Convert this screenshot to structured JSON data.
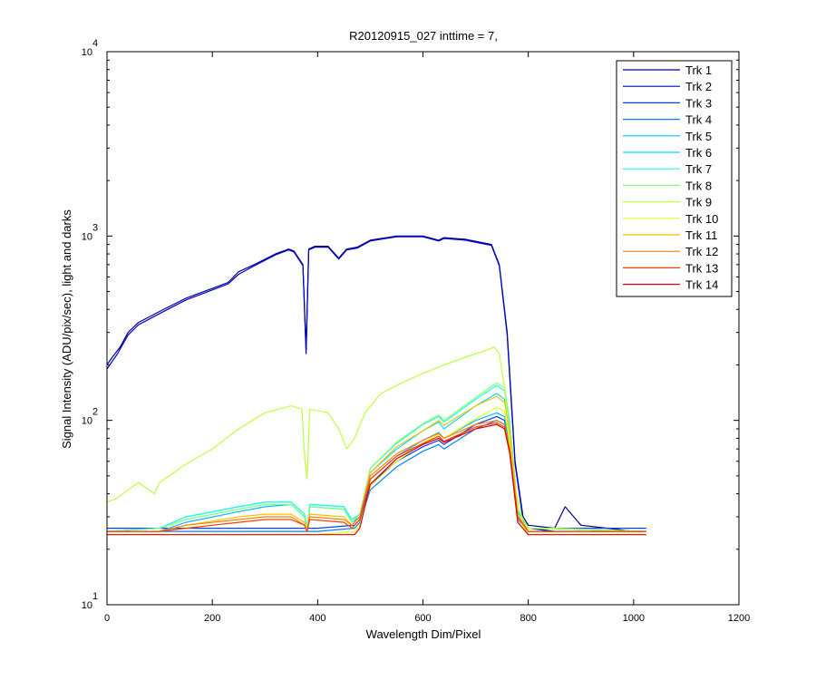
{
  "chart_data": {
    "type": "line",
    "title": "R20120915_027 inttime = 7,",
    "xlabel": "Wavelength Dim/Pixel",
    "ylabel": "Signal Intensity (ADU/pix/sec), light and darks",
    "xlim": [
      0,
      1200
    ],
    "ylim": [
      10,
      10000
    ],
    "yscale": "log",
    "grid": false,
    "legend_position": "top-right",
    "x_ticks": [
      0,
      200,
      400,
      600,
      800,
      1000,
      1200
    ],
    "x_tick_labels": [
      "0",
      "200",
      "400",
      "600",
      "800",
      "1000",
      "1200"
    ],
    "y_ticks": [
      10,
      100,
      1000,
      10000
    ],
    "y_tick_labels": [
      {
        "base": "10",
        "exp": "1"
      },
      {
        "base": "10",
        "exp": "2"
      },
      {
        "base": "10",
        "exp": "3"
      },
      {
        "base": "10",
        "exp": "4"
      }
    ],
    "series": [
      {
        "name": "Trk 1",
        "color": "#00008f",
        "x": [
          0,
          10,
          25,
          40,
          60,
          100,
          150,
          200,
          230,
          250,
          280,
          320,
          345,
          355,
          372,
          378,
          383,
          395,
          420,
          440,
          455,
          475,
          500,
          550,
          600,
          630,
          640,
          680,
          730,
          745,
          760,
          775,
          790,
          800,
          850,
          870,
          900,
          950,
          1000,
          1024
        ],
        "y": [
          200,
          220,
          250,
          300,
          340,
          390,
          460,
          520,
          560,
          640,
          700,
          800,
          850,
          830,
          700,
          240,
          850,
          880,
          880,
          760,
          850,
          870,
          950,
          1000,
          1000,
          950,
          980,
          960,
          900,
          700,
          300,
          60,
          30,
          27,
          26,
          34,
          27,
          26,
          25,
          25
        ]
      },
      {
        "name": "Trk 2",
        "color": "#0000c8",
        "x": [
          0,
          20,
          40,
          60,
          100,
          150,
          200,
          230,
          250,
          280,
          320,
          345,
          355,
          372,
          378,
          383,
          395,
          420,
          440,
          455,
          475,
          500,
          550,
          600,
          630,
          640,
          680,
          730,
          745,
          760,
          775,
          790,
          800,
          850,
          1024
        ],
        "y": [
          190,
          230,
          290,
          330,
          380,
          450,
          510,
          550,
          620,
          690,
          790,
          840,
          820,
          690,
          230,
          840,
          870,
          870,
          750,
          840,
          860,
          940,
          990,
          990,
          940,
          970,
          950,
          890,
          690,
          290,
          58,
          29,
          26,
          25,
          25
        ]
      },
      {
        "name": "Trk 3",
        "color": "#0040ff",
        "x": [
          0,
          100,
          200,
          300,
          400,
          470,
          480,
          500,
          550,
          600,
          630,
          640,
          700,
          740,
          755,
          765,
          780,
          800,
          1024
        ],
        "y": [
          26,
          26,
          26,
          26,
          26,
          27,
          29,
          45,
          60,
          72,
          78,
          74,
          95,
          105,
          100,
          70,
          30,
          26,
          26
        ]
      },
      {
        "name": "Trk 4",
        "color": "#007fff",
        "x": [
          0,
          100,
          200,
          300,
          400,
          470,
          480,
          500,
          550,
          600,
          630,
          640,
          700,
          740,
          755,
          765,
          780,
          800,
          1024
        ],
        "y": [
          25,
          25,
          25,
          25,
          25,
          26,
          28,
          42,
          56,
          68,
          74,
          70,
          90,
          100,
          95,
          66,
          29,
          25,
          25
        ]
      },
      {
        "name": "Trk 5",
        "color": "#00bfff",
        "x": [
          0,
          100,
          150,
          250,
          300,
          350,
          375,
          380,
          385,
          450,
          465,
          480,
          500,
          550,
          600,
          630,
          640,
          700,
          740,
          755,
          765,
          780,
          800,
          1024
        ],
        "y": [
          25,
          25,
          28,
          32,
          34,
          35,
          30,
          25,
          34,
          33,
          28,
          30,
          48,
          64,
          78,
          86,
          80,
          100,
          110,
          105,
          72,
          30,
          26,
          25
        ]
      },
      {
        "name": "Trk 6",
        "color": "#00dfff",
        "x": [
          0,
          100,
          150,
          250,
          300,
          350,
          375,
          380,
          385,
          450,
          465,
          480,
          500,
          550,
          600,
          630,
          640,
          700,
          740,
          755,
          765,
          780,
          800,
          1024
        ],
        "y": [
          25,
          26,
          30,
          34,
          36,
          36,
          31,
          26,
          35,
          34,
          29,
          31,
          52,
          70,
          88,
          98,
          90,
          120,
          140,
          130,
          85,
          32,
          26,
          25
        ]
      },
      {
        "name": "Trk 7",
        "color": "#20ffdf",
        "x": [
          0,
          100,
          150,
          250,
          300,
          350,
          375,
          380,
          385,
          450,
          465,
          480,
          500,
          550,
          600,
          630,
          640,
          700,
          740,
          755,
          765,
          780,
          800,
          1024
        ],
        "y": [
          25,
          26,
          30,
          34,
          36,
          36,
          31,
          26,
          35,
          34,
          29,
          31,
          55,
          75,
          95,
          105,
          98,
          130,
          155,
          145,
          95,
          33,
          26,
          25
        ]
      },
      {
        "name": "Trk 8",
        "color": "#7fff7f",
        "x": [
          0,
          100,
          150,
          250,
          300,
          350,
          375,
          380,
          385,
          450,
          465,
          480,
          500,
          550,
          600,
          630,
          640,
          700,
          740,
          755,
          765,
          780,
          800,
          1024
        ],
        "y": [
          25,
          26,
          29,
          33,
          35,
          35,
          30,
          26,
          34,
          33,
          28,
          31,
          55,
          76,
          96,
          107,
          100,
          133,
          160,
          150,
          98,
          33,
          26,
          25
        ]
      },
      {
        "name": "Trk 9",
        "color": "#bfff3f",
        "x": [
          0,
          20,
          40,
          60,
          90,
          100,
          150,
          200,
          250,
          300,
          350,
          370,
          376,
          380,
          385,
          420,
          440,
          455,
          470,
          490,
          520,
          560,
          600,
          640,
          680,
          720,
          735,
          745,
          755,
          770,
          790,
          800,
          850,
          1024
        ],
        "y": [
          36,
          38,
          42,
          46,
          40,
          46,
          58,
          70,
          90,
          110,
          120,
          115,
          60,
          48,
          115,
          110,
          90,
          70,
          80,
          110,
          140,
          160,
          180,
          200,
          220,
          240,
          250,
          230,
          150,
          50,
          28,
          26,
          26,
          25
        ]
      },
      {
        "name": "Trk 10",
        "color": "#dfff1f",
        "x": [
          0,
          100,
          200,
          300,
          400,
          470,
          480,
          500,
          550,
          600,
          630,
          640,
          700,
          740,
          755,
          765,
          780,
          800,
          1024
        ],
        "y": [
          24,
          24,
          24,
          24,
          24,
          25,
          27,
          44,
          60,
          75,
          84,
          80,
          102,
          118,
          112,
          76,
          30,
          24,
          24
        ]
      },
      {
        "name": "Trk 11",
        "color": "#ffbf00",
        "x": [
          0,
          100,
          150,
          250,
          300,
          350,
          375,
          380,
          385,
          450,
          465,
          480,
          500,
          550,
          600,
          630,
          640,
          700,
          740,
          755,
          765,
          780,
          800,
          1024
        ],
        "y": [
          25,
          25,
          27,
          30,
          31,
          31,
          28,
          25,
          31,
          30,
          27,
          30,
          52,
          72,
          88,
          100,
          94,
          120,
          135,
          125,
          85,
          31,
          25,
          25
        ]
      },
      {
        "name": "Trk 12",
        "color": "#ff7f00",
        "x": [
          0,
          100,
          150,
          250,
          300,
          350,
          375,
          380,
          385,
          450,
          465,
          480,
          500,
          550,
          600,
          630,
          640,
          700,
          740,
          755,
          765,
          780,
          800,
          1024
        ],
        "y": [
          25,
          25,
          27,
          29,
          30,
          30,
          27,
          25,
          30,
          29,
          27,
          30,
          50,
          66,
          78,
          85,
          80,
          95,
          100,
          95,
          70,
          30,
          25,
          25
        ]
      },
      {
        "name": "Trk 13",
        "color": "#ff4000",
        "x": [
          0,
          100,
          150,
          250,
          300,
          350,
          375,
          380,
          385,
          450,
          465,
          480,
          500,
          550,
          600,
          630,
          640,
          700,
          740,
          755,
          765,
          780,
          800,
          1024
        ],
        "y": [
          25,
          25,
          26,
          28,
          29,
          29,
          27,
          25,
          29,
          28,
          26,
          29,
          48,
          64,
          75,
          82,
          77,
          92,
          97,
          92,
          68,
          30,
          25,
          25
        ]
      },
      {
        "name": "Trk 14",
        "color": "#df0000",
        "x": [
          0,
          100,
          200,
          300,
          400,
          470,
          480,
          500,
          550,
          600,
          630,
          640,
          700,
          740,
          755,
          765,
          780,
          800,
          1024
        ],
        "y": [
          24,
          24,
          24,
          24,
          24,
          24,
          26,
          45,
          62,
          74,
          80,
          76,
          90,
          95,
          90,
          66,
          28,
          24,
          24
        ]
      }
    ]
  }
}
